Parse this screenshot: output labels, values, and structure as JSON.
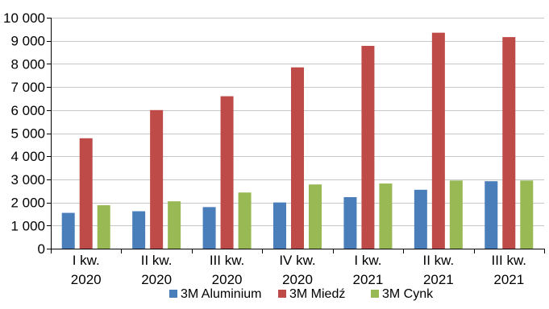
{
  "chart_data": {
    "type": "bar",
    "title": "",
    "xlabel": "",
    "ylabel": "",
    "ylim": [
      0,
      10000
    ],
    "yticks": [
      0,
      1000,
      2000,
      3000,
      4000,
      5000,
      6000,
      7000,
      8000,
      9000,
      10000
    ],
    "ytick_labels": [
      "0",
      "1 000",
      "2 000",
      "3 000",
      "4 000",
      "5 000",
      "6 000",
      "7 000",
      "8 000",
      "9 000",
      "10 000"
    ],
    "grid": "horizontal",
    "legend_position": "bottom",
    "categories": [
      [
        "I kw.",
        "2020"
      ],
      [
        "II kw.",
        "2020"
      ],
      [
        "III kw.",
        "2020"
      ],
      [
        "IV kw.",
        "2020"
      ],
      [
        "I kw.",
        "2021"
      ],
      [
        "II kw.",
        "2021"
      ],
      [
        "III kw.",
        "2021"
      ]
    ],
    "series": [
      {
        "name": "3M Aluminium",
        "color": "#4a7ebb",
        "values": [
          1550,
          1620,
          1800,
          2000,
          2230,
          2550,
          2920
        ]
      },
      {
        "name": "3M Miedź",
        "color": "#be4b48",
        "values": [
          4780,
          6000,
          6600,
          7850,
          8780,
          9350,
          9160
        ]
      },
      {
        "name": "3M Cynk",
        "color": "#98b954",
        "values": [
          1880,
          2050,
          2430,
          2780,
          2820,
          2950,
          2950
        ]
      }
    ]
  }
}
